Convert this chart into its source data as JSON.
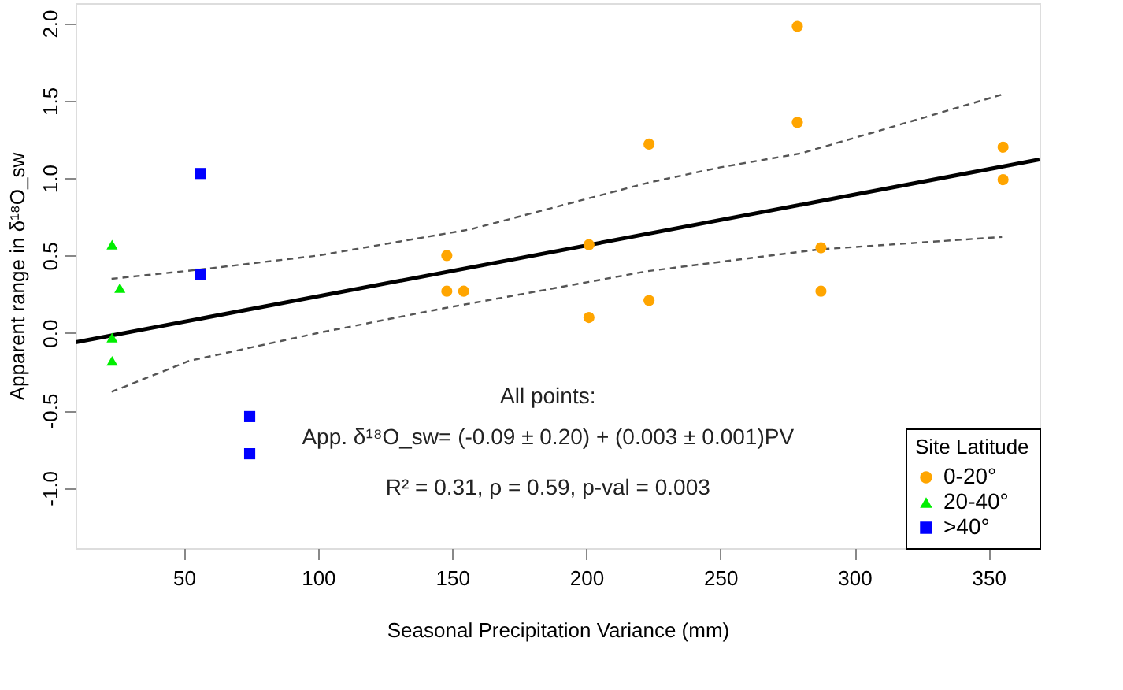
{
  "chart_data": {
    "type": "scatter",
    "xlabel": "Seasonal Precipitation Variance (mm)",
    "ylabel": "Apparent range in  δ¹⁸O_sw",
    "legend_title": "Site Latitude",
    "legend": "bottom right",
    "grid": false,
    "xlim": [
      9.6,
      369
    ],
    "ylim": [
      -1.39,
      2.13
    ],
    "xticks": [
      50,
      100,
      150,
      200,
      250,
      300,
      350
    ],
    "yticks": [
      {
        "value": -1,
        "label": "-1.0"
      },
      -0.5,
      {
        "value": 0,
        "label": "0.0"
      },
      0.5,
      {
        "value": 1,
        "label": "1.0"
      },
      1.5,
      {
        "value": 2,
        "label": "2.0"
      }
    ],
    "series": [
      {
        "name": "0-20°",
        "marker": "circle",
        "color": "#ffa500",
        "x": [
          148,
          148,
          154.3,
          278.7,
          278.7,
          223.4,
          223.4,
          201,
          201,
          287.5,
          287.5,
          355.4,
          355.4
        ],
        "values": [
          0.5,
          0.27,
          0.27,
          1.98,
          1.36,
          1.22,
          0.21,
          0.57,
          0.1,
          0.55,
          0.27,
          1.2,
          0.99
        ]
      },
      {
        "name": "20-40°",
        "marker": "triangle",
        "color": "#00ee00",
        "x": [
          23.2,
          26.1,
          23.2,
          23.2
        ],
        "values": [
          0.57,
          0.29,
          -0.03,
          -0.18
        ]
      },
      {
        "name": ">40°",
        "marker": "square",
        "color": "#0000ff",
        "x": [
          56.1,
          56.1,
          74.5,
          74.5
        ],
        "values": [
          1.03,
          0.38,
          -0.54,
          -0.78
        ]
      },
      {
        "type": "line",
        "line_style": "solid",
        "color": "#000000",
        "x": [
          9.6,
          369
        ],
        "values": [
          -0.06,
          1.12
        ]
      },
      {
        "type": "line",
        "line_style": "dashed",
        "color": "#555555",
        "x": [
          23,
          56,
          100,
          157,
          201,
          223,
          250,
          280,
          310,
          355
        ],
        "values": [
          0.35,
          0.41,
          0.5,
          0.67,
          0.87,
          0.97,
          1.07,
          1.16,
          1.31,
          1.54
        ]
      },
      {
        "type": "line",
        "line_style": "dashed",
        "color": "#555555",
        "x": [
          23,
          52,
          100,
          147,
          201,
          223,
          287,
          355
        ],
        "values": [
          -0.38,
          -0.18,
          0.0,
          0.16,
          0.33,
          0.4,
          0.54,
          0.62
        ]
      }
    ],
    "annotations": [
      "All points:",
      "App. δ¹⁸O_sw= (-0.09 ± 0.20) + (0.003 ± 0.001)PV",
      "R² = 0.31, ρ = 0.59, p-val = 0.003"
    ]
  }
}
